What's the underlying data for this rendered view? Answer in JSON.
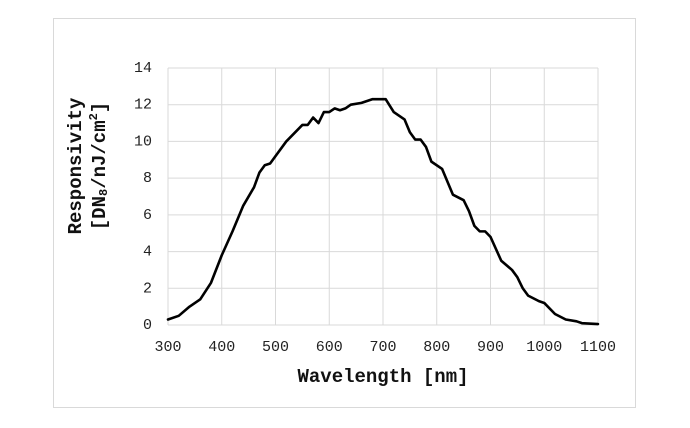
{
  "chart_data": {
    "type": "line",
    "xlabel": "Wavelength [nm]",
    "ylabel": [
      "Responsivity",
      "[DN",
      "8",
      "/nJ/cm",
      "2",
      "]"
    ],
    "x": [
      300,
      320,
      340,
      360,
      380,
      400,
      420,
      440,
      460,
      470,
      480,
      490,
      500,
      520,
      540,
      550,
      560,
      570,
      580,
      590,
      600,
      610,
      620,
      630,
      640,
      660,
      680,
      700,
      705,
      720,
      740,
      750,
      760,
      770,
      780,
      790,
      810,
      830,
      850,
      860,
      870,
      880,
      890,
      900,
      920,
      940,
      950,
      960,
      970,
      990,
      1000,
      1020,
      1040,
      1060,
      1070,
      1100
    ],
    "series": [
      {
        "name": "Responsivity",
        "color": "#000000",
        "values": [
          0.3,
          0.5,
          1.0,
          1.4,
          2.3,
          3.8,
          5.1,
          6.5,
          7.5,
          8.3,
          8.7,
          8.8,
          9.2,
          10.0,
          10.6,
          10.9,
          10.9,
          11.3,
          11.0,
          11.6,
          11.6,
          11.8,
          11.7,
          11.8,
          12.0,
          12.1,
          12.3,
          12.3,
          12.3,
          11.6,
          11.2,
          10.5,
          10.1,
          10.1,
          9.7,
          8.9,
          8.5,
          7.1,
          6.8,
          6.2,
          5.4,
          5.1,
          5.1,
          4.8,
          3.5,
          3.0,
          2.6,
          2.0,
          1.6,
          1.3,
          1.2,
          0.6,
          0.3,
          0.2,
          0.1,
          0.05
        ]
      }
    ],
    "xlim": [
      300,
      1100
    ],
    "xticks": [
      300,
      400,
      500,
      600,
      700,
      800,
      900,
      1000,
      1100
    ],
    "ylim": [
      0,
      14
    ],
    "yticks": [
      0,
      2,
      4,
      6,
      8,
      10,
      12,
      14
    ],
    "grid": true
  }
}
